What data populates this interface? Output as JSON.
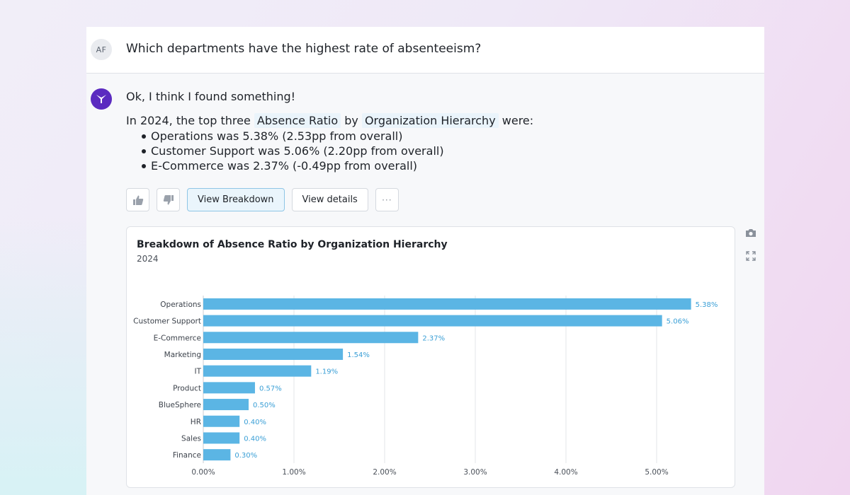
{
  "conversation": {
    "user_initials": "AF",
    "question": "Which departments have the highest rate of absenteeism?"
  },
  "answer": {
    "heading": "Ok, I think I found something!",
    "intro_prefix": "In 2024, the top three",
    "metric_chip": "Absence Ratio",
    "intro_by": "by",
    "dimension_chip": "Organization Hierarchy",
    "intro_suffix": "were:",
    "bullets": [
      "Operations was 5.38% (2.53pp from overall)",
      "Customer Support was 5.06% (2.20pp from overall)",
      "E-Commerce was 2.37% (-0.49pp from overall)"
    ]
  },
  "actions": {
    "thumbs_up_icon": "thumbs-up-icon",
    "thumbs_down_icon": "thumbs-down-icon",
    "view_breakdown": "View Breakdown",
    "view_details": "View details",
    "more": "···"
  },
  "side_tools": {
    "camera_icon": "camera-icon",
    "expand_icon": "expand-icon"
  },
  "colors": {
    "bar": "#5bb5e4",
    "bar_label": "#3a9fd6",
    "grid": "#e3e6ea",
    "bot_avatar": "#5b2bc0"
  },
  "chart_data": {
    "type": "bar",
    "orientation": "horizontal",
    "title": "Breakdown of Absence Ratio by Organization Hierarchy",
    "subtitle": "2024",
    "categories": [
      "Operations",
      "Customer Support",
      "E-Commerce",
      "Marketing",
      "IT",
      "Product",
      "BlueSphere",
      "HR",
      "Sales",
      "Finance"
    ],
    "values": [
      5.38,
      5.06,
      2.37,
      1.54,
      1.19,
      0.57,
      0.5,
      0.4,
      0.4,
      0.3
    ],
    "value_labels": [
      "5.38%",
      "5.06%",
      "2.37%",
      "1.54%",
      "1.19%",
      "0.57%",
      "0.50%",
      "0.40%",
      "0.40%",
      "0.30%"
    ],
    "x_ticks": [
      0,
      1,
      2,
      3,
      4,
      5
    ],
    "x_tick_labels": [
      "0.00%",
      "1.00%",
      "2.00%",
      "3.00%",
      "4.00%",
      "5.00%"
    ],
    "xlim": [
      0,
      5.5
    ],
    "grid": true,
    "legend": "none"
  }
}
